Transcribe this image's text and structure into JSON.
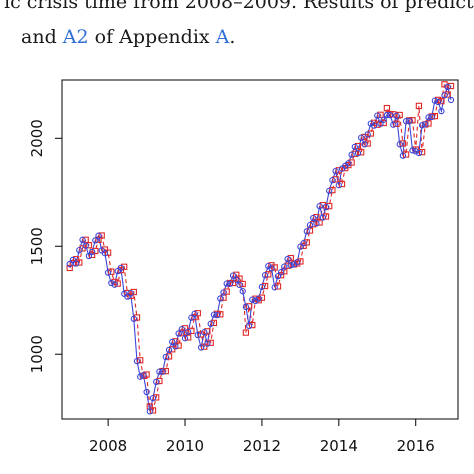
{
  "caption": {
    "line1": "ic crisis time from 2008–2009. Results of predictio",
    "line2_prefix": "and ",
    "line2_link1": "A2",
    "line2_middle": " of Appendix ",
    "line2_link2": "A",
    "line2_suffix": "."
  },
  "colors": {
    "actual": "#3a46d8",
    "predicted": "#e02828",
    "axis": "#000000"
  },
  "chart_data": {
    "type": "line",
    "title": "",
    "xlabel": "",
    "ylabel": "",
    "xlim": [
      2006.8,
      2017.1
    ],
    "ylim": [
      700,
      2270
    ],
    "xticks": [
      2008,
      2010,
      2012,
      2014,
      2016
    ],
    "yticks": [
      1000,
      1500,
      2000
    ],
    "grid": false,
    "series": [
      {
        "marker": "circle",
        "line": "solid",
        "x": [
          2007.0,
          2007.083,
          2007.167,
          2007.25,
          2007.333,
          2007.417,
          2007.5,
          2007.583,
          2007.667,
          2007.75,
          2007.833,
          2007.917,
          2008.0,
          2008.083,
          2008.167,
          2008.25,
          2008.333,
          2008.417,
          2008.5,
          2008.583,
          2008.667,
          2008.75,
          2008.833,
          2008.917,
          2009.0,
          2009.083,
          2009.167,
          2009.25,
          2009.333,
          2009.417,
          2009.5,
          2009.583,
          2009.667,
          2009.75,
          2009.833,
          2009.917,
          2010.0,
          2010.083,
          2010.167,
          2010.25,
          2010.333,
          2010.417,
          2010.5,
          2010.583,
          2010.667,
          2010.75,
          2010.833,
          2010.917,
          2011.0,
          2011.083,
          2011.167,
          2011.25,
          2011.333,
          2011.417,
          2011.5,
          2011.583,
          2011.667,
          2011.75,
          2011.833,
          2011.917,
          2012.0,
          2012.083,
          2012.167,
          2012.25,
          2012.333,
          2012.417,
          2012.5,
          2012.583,
          2012.667,
          2012.75,
          2012.833,
          2012.917,
          2013.0,
          2013.083,
          2013.167,
          2013.25,
          2013.333,
          2013.417,
          2013.5,
          2013.583,
          2013.667,
          2013.75,
          2013.833,
          2013.917,
          2014.0,
          2014.083,
          2014.167,
          2014.25,
          2014.333,
          2014.417,
          2014.5,
          2014.583,
          2014.667,
          2014.75,
          2014.833,
          2014.917,
          2015.0,
          2015.083,
          2015.167,
          2015.25,
          2015.333,
          2015.417,
          2015.5,
          2015.583,
          2015.667,
          2015.75,
          2015.833,
          2015.917,
          2016.0,
          2016.083,
          2016.167,
          2016.25,
          2016.333,
          2016.417,
          2016.5,
          2016.583,
          2016.667,
          2016.75,
          2016.833,
          2016.917
        ],
        "values": [
          1418,
          1437,
          1420,
          1482,
          1530,
          1503,
          1455,
          1474,
          1527,
          1549,
          1481,
          1468,
          1378,
          1330,
          1322,
          1385,
          1400,
          1280,
          1267,
          1283,
          1164,
          968,
          896,
          903,
          825,
          735,
          797,
          872,
          919,
          919,
          987,
          1020,
          1057,
          1036,
          1096,
          1116,
          1074,
          1104,
          1169,
          1187,
          1089,
          1031,
          1102,
          1049,
          1141,
          1183,
          1181,
          1258,
          1286,
          1327,
          1326,
          1364,
          1345,
          1321,
          1292,
          1219,
          1131,
          1253,
          1247,
          1258,
          1312,
          1366,
          1408,
          1398,
          1310,
          1362,
          1380,
          1406,
          1441,
          1412,
          1416,
          1426,
          1498,
          1514,
          1569,
          1598,
          1631,
          1606,
          1686,
          1633,
          1682,
          1757,
          1806,
          1848,
          1783,
          1859,
          1872,
          1884,
          1924,
          1960,
          1931,
          2003,
          1972,
          2018,
          2068,
          2059,
          2105,
          2067,
          2086,
          2108,
          2107,
          2063,
          2104,
          1972,
          1920,
          2079,
          2080,
          1944,
          1940,
          1932,
          2060,
          2065,
          2097,
          2099,
          2174,
          2168,
          2126,
          2199,
          2238,
          2178
        ]
      },
      {
        "marker": "square",
        "line": "dashed",
        "x": [
          2007.0,
          2007.083,
          2007.167,
          2007.25,
          2007.333,
          2007.417,
          2007.5,
          2007.583,
          2007.667,
          2007.75,
          2007.833,
          2007.917,
          2008.0,
          2008.083,
          2008.167,
          2008.25,
          2008.333,
          2008.417,
          2008.5,
          2008.583,
          2008.667,
          2008.75,
          2008.833,
          2008.917,
          2009.0,
          2009.083,
          2009.167,
          2009.25,
          2009.333,
          2009.417,
          2009.5,
          2009.583,
          2009.667,
          2009.75,
          2009.833,
          2009.917,
          2010.0,
          2010.083,
          2010.167,
          2010.25,
          2010.333,
          2010.417,
          2010.5,
          2010.583,
          2010.667,
          2010.75,
          2010.833,
          2010.917,
          2011.0,
          2011.083,
          2011.167,
          2011.25,
          2011.333,
          2011.417,
          2011.5,
          2011.583,
          2011.667,
          2011.75,
          2011.833,
          2011.917,
          2012.0,
          2012.083,
          2012.167,
          2012.25,
          2012.333,
          2012.417,
          2012.5,
          2012.583,
          2012.667,
          2012.75,
          2012.833,
          2012.917,
          2013.0,
          2013.083,
          2013.167,
          2013.25,
          2013.333,
          2013.417,
          2013.5,
          2013.583,
          2013.667,
          2013.75,
          2013.833,
          2013.917,
          2014.0,
          2014.083,
          2014.167,
          2014.25,
          2014.333,
          2014.417,
          2014.5,
          2014.583,
          2014.667,
          2014.75,
          2014.833,
          2014.917,
          2015.0,
          2015.083,
          2015.167,
          2015.25,
          2015.333,
          2015.417,
          2015.5,
          2015.583,
          2015.667,
          2015.75,
          2015.833,
          2015.917,
          2016.0,
          2016.083,
          2016.167,
          2016.25,
          2016.333,
          2016.417,
          2016.5,
          2016.583,
          2016.667,
          2016.75,
          2016.833,
          2016.917
        ],
        "values": [
          1400,
          1422,
          1440,
          1425,
          1490,
          1530,
          1505,
          1460,
          1478,
          1530,
          1550,
          1485,
          1470,
          1382,
          1335,
          1327,
          1390,
          1405,
          1283,
          1270,
          1288,
          1170,
          972,
          900,
          906,
          758,
          740,
          800,
          876,
          922,
          922,
          990,
          1023,
          1060,
          1040,
          1100,
          1120,
          1078,
          1108,
          1172,
          1190,
          1092,
          1035,
          1106,
          1053,
          1145,
          1187,
          1185,
          1262,
          1290,
          1330,
          1330,
          1368,
          1350,
          1325,
          1100,
          1222,
          1135,
          1257,
          1250,
          1262,
          1316,
          1370,
          1412,
          1402,
          1314,
          1366,
          1384,
          1410,
          1445,
          1416,
          1420,
          1430,
          1502,
          1518,
          1573,
          1602,
          1635,
          1610,
          1690,
          1638,
          1686,
          1760,
          1810,
          1852,
          1788,
          1862,
          1876,
          1888,
          1928,
          1964,
          1935,
          2006,
          1976,
          2022,
          2072,
          2063,
          2109,
          2071,
          2140,
          2112,
          2111,
          2067,
          2108,
          1976,
          1925,
          2083,
          2084,
          1948,
          2150,
          1936,
          2064,
          2069,
          2101,
          2103,
          2178,
          2172,
          2250,
          2203,
          2242
        ]
      }
    ]
  }
}
